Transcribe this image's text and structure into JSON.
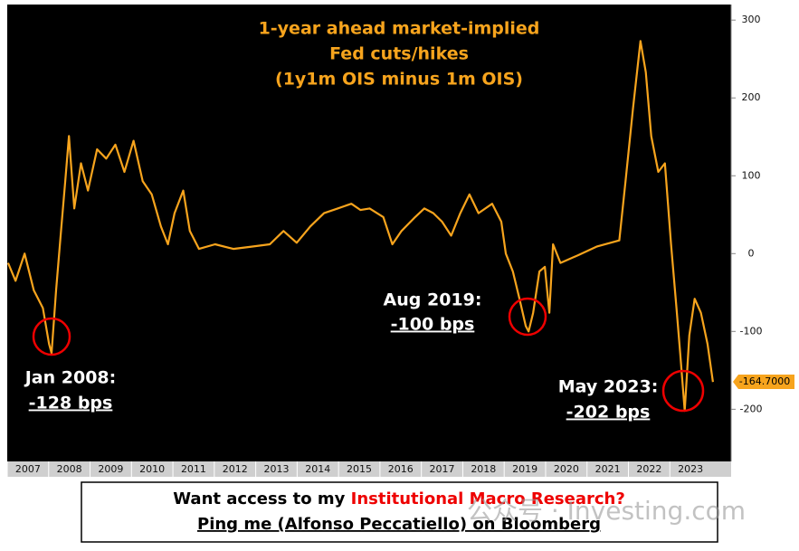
{
  "chart_data": {
    "type": "line",
    "title": [
      "1-year ahead market-implied",
      "Fed cuts/hikes",
      "(1y1m OIS minus 1m OIS)"
    ],
    "series": [
      {
        "color": "#f7a41d",
        "x": [
          2007.02,
          2007.2,
          2007.42,
          2007.64,
          2007.86,
          2008.01,
          2008.07,
          2008.18,
          2008.29,
          2008.4,
          2008.49,
          2008.62,
          2008.78,
          2008.95,
          2009.17,
          2009.39,
          2009.61,
          2009.83,
          2010.05,
          2010.27,
          2010.49,
          2010.71,
          2010.88,
          2011.04,
          2011.25,
          2011.41,
          2011.63,
          2012.02,
          2012.46,
          2012.9,
          2013.34,
          2013.67,
          2013.99,
          2014.32,
          2014.65,
          2014.98,
          2015.31,
          2015.53,
          2015.75,
          2016.08,
          2016.3,
          2016.52,
          2016.85,
          2017.07,
          2017.29,
          2017.5,
          2017.72,
          2017.94,
          2018.16,
          2018.38,
          2018.71,
          2018.93,
          2019.04,
          2019.21,
          2019.37,
          2019.52,
          2019.59,
          2019.7,
          2019.85,
          2019.98,
          2020.09,
          2020.18,
          2020.36,
          2020.79,
          2021.23,
          2021.78,
          2021.93,
          2022.11,
          2022.29,
          2022.42,
          2022.55,
          2022.72,
          2022.88,
          2023.03,
          2023.16,
          2023.25,
          2023.36,
          2023.47,
          2023.6,
          2023.75,
          2023.91,
          2024.04
        ],
        "values": [
          -12,
          -35,
          0,
          -47,
          -70,
          -116,
          -128,
          -47,
          23,
          93,
          151,
          58,
          116,
          81,
          134,
          122,
          140,
          105,
          145,
          93,
          76,
          35,
          12,
          52,
          81,
          29,
          6,
          12,
          6,
          9,
          12,
          29,
          14,
          35,
          52,
          58,
          64,
          56,
          58,
          47,
          12,
          29,
          47,
          58,
          52,
          41,
          23,
          52,
          76,
          52,
          64,
          41,
          0,
          -23,
          -58,
          -93,
          -100,
          -76,
          -23,
          -17,
          -76,
          12,
          -12,
          -2,
          9,
          17,
          93,
          186,
          273,
          233,
          151,
          105,
          116,
          12,
          -70,
          -128,
          -202,
          -105,
          -58,
          -76,
          -116,
          -165
        ]
      }
    ],
    "xlim": [
      2007,
      2024.48
    ],
    "xticks": [
      2007,
      2008,
      2009,
      2010,
      2011,
      2012,
      2013,
      2014,
      2015,
      2016,
      2017,
      2018,
      2019,
      2020,
      2021,
      2022,
      2023
    ],
    "ylim": [
      -267,
      320
    ],
    "yticks": [
      -200,
      -100,
      0,
      100,
      200,
      300
    ],
    "last_value": {
      "value": -164.7,
      "label": "-164.7000"
    },
    "annotations": [
      {
        "lines": [
          "Jan 2008:",
          "-128 bps"
        ]
      },
      {
        "lines": [
          "Aug 2019:",
          "-100 bps"
        ]
      },
      {
        "lines": [
          "May 2023:",
          "-202 bps"
        ]
      }
    ]
  },
  "footer": {
    "line1_prefix": "Want access to my ",
    "line1_highlight": "Institutional Macro Research?",
    "line2": "Ping me (Alfonso Peccatiello) on Bloomberg"
  },
  "watermark": "公众号 · Investing.com"
}
